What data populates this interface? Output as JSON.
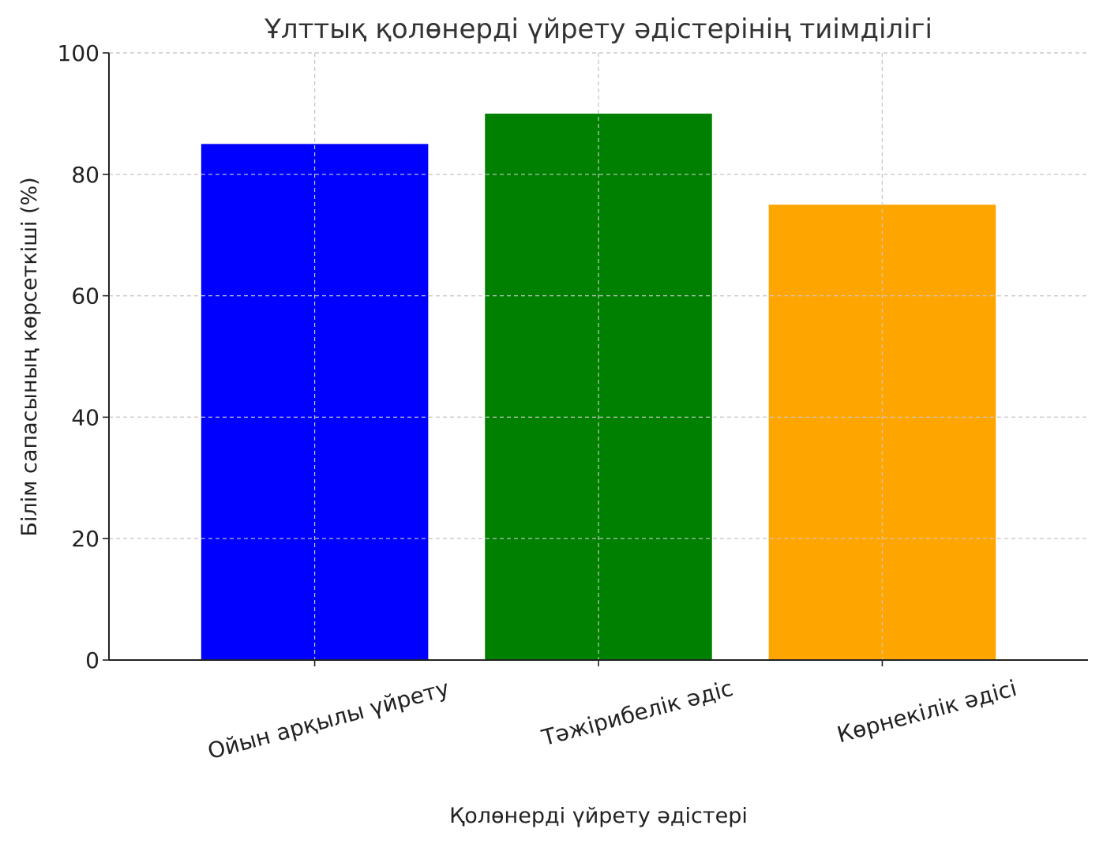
{
  "chart_data": {
    "type": "bar",
    "title": "Ұлттық қолөнерді үйрету әдістерінің тиімділігі",
    "xlabel": "Қолөнерді үйрету әдістері",
    "ylabel": "Білім сапасының көрсеткіші (%)",
    "categories": [
      "Ойын арқылы үйрету",
      "Тәжірибелік әдіс",
      "Көрнекілік әдісі"
    ],
    "values": [
      85,
      90,
      75
    ],
    "colors": [
      "#0000ff",
      "#008000",
      "#ffa500"
    ],
    "ylim": [
      0,
      100
    ],
    "yticks": [
      0,
      20,
      40,
      60,
      80,
      100
    ],
    "grid": true
  }
}
